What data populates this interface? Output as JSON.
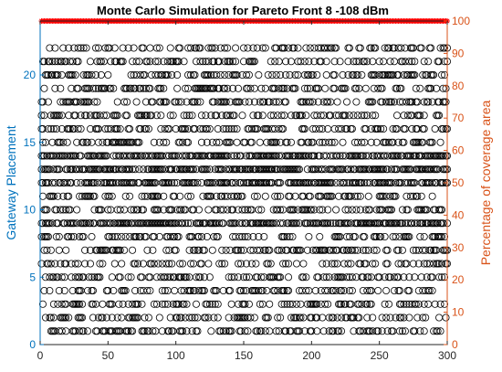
{
  "chart_data": {
    "type": "scatter",
    "title": "Monte Carlo Simulation for Pareto Front 8 -108 dBm",
    "xlabel": "",
    "ylabel_left": "Gateway Placement",
    "ylabel_right": "Percentage of coverage area",
    "xlim": [
      0,
      300
    ],
    "ylim_left": [
      0,
      24
    ],
    "ylim_right": [
      0,
      100
    ],
    "xticks": [
      0,
      50,
      100,
      150,
      200,
      250,
      300
    ],
    "yticks_left": [
      0,
      5,
      10,
      15,
      20
    ],
    "yticks_right": [
      0,
      10,
      20,
      30,
      40,
      50,
      60,
      70,
      80,
      90,
      100
    ],
    "grid": false,
    "colors": {
      "left_axis": "#0072BD",
      "right_axis": "#D95319",
      "markers": "#000000",
      "coverage": "#FF0000"
    },
    "series": [
      {
        "axis": "left",
        "marker": "circle",
        "x_range": [
          1,
          300
        ],
        "points_per_run": 9,
        "frequent_values": [
          9,
          12,
          13,
          14
        ],
        "values": [
          1,
          2,
          3,
          4,
          5,
          6,
          7,
          8,
          9,
          10,
          11,
          12,
          13,
          14,
          15,
          16,
          17,
          18,
          19,
          20,
          21,
          22
        ]
      },
      {
        "axis": "right",
        "marker": "star",
        "x_range": [
          1,
          300
        ],
        "constant_value": 100
      }
    ]
  }
}
